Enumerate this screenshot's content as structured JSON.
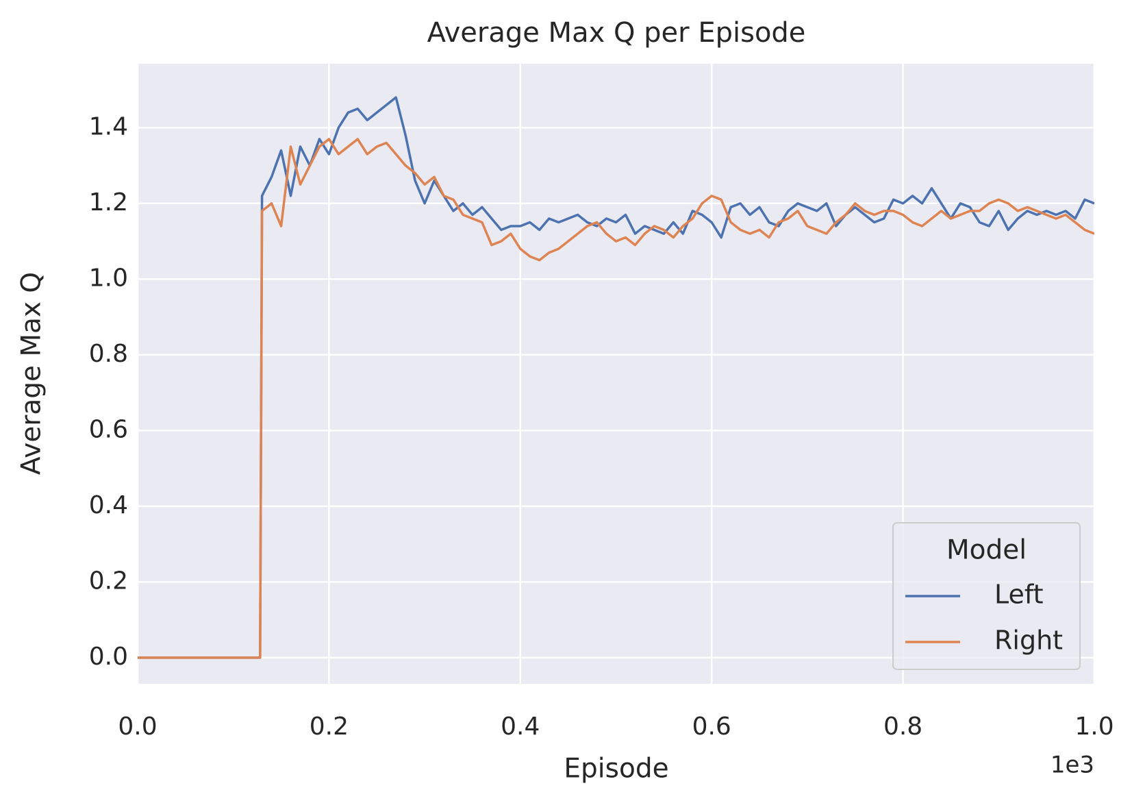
{
  "chart_data": {
    "type": "line",
    "title": "Average Max Q per Episode",
    "x_label": "Episode",
    "x_offset_label": "1e3",
    "y_label": "Average Max Q",
    "xlim": [
      0,
      1000
    ],
    "ylim": [
      -0.069,
      1.569
    ],
    "xticks": [
      {
        "value": 0,
        "label": "0.0"
      },
      {
        "value": 200,
        "label": "0.2"
      },
      {
        "value": 400,
        "label": "0.4"
      },
      {
        "value": 600,
        "label": "0.6"
      },
      {
        "value": 800,
        "label": "0.8"
      },
      {
        "value": 1000,
        "label": "1.0"
      }
    ],
    "yticks": [
      {
        "value": 0,
        "label": "0.0"
      },
      0.2,
      0.4,
      0.6,
      0.8,
      {
        "value": 1,
        "label": "1.0"
      },
      1.2,
      1.4
    ],
    "grid": true,
    "legend_title": "Model",
    "legend_position": "lower right",
    "x": [
      0,
      10,
      20,
      30,
      40,
      50,
      60,
      70,
      80,
      90,
      100,
      110,
      120,
      128,
      130,
      140,
      150,
      160,
      170,
      180,
      190,
      200,
      210,
      220,
      230,
      240,
      250,
      260,
      270,
      280,
      290,
      300,
      310,
      320,
      330,
      340,
      350,
      360,
      370,
      380,
      390,
      400,
      410,
      420,
      430,
      440,
      450,
      460,
      470,
      480,
      490,
      500,
      510,
      520,
      530,
      540,
      550,
      560,
      570,
      580,
      590,
      600,
      610,
      620,
      630,
      640,
      650,
      660,
      670,
      680,
      690,
      700,
      710,
      720,
      730,
      740,
      750,
      760,
      770,
      780,
      790,
      800,
      810,
      820,
      830,
      840,
      850,
      860,
      870,
      880,
      890,
      900,
      910,
      920,
      930,
      940,
      950,
      960,
      970,
      980,
      990,
      1000
    ],
    "series": [
      {
        "name": "Left",
        "color": "#4c72b0",
        "values": [
          0,
          0,
          0,
          0,
          0,
          0,
          0,
          0,
          0,
          0,
          0,
          0,
          0,
          0,
          1.22,
          1.27,
          1.34,
          1.22,
          1.35,
          1.3,
          1.37,
          1.33,
          1.4,
          1.44,
          1.45,
          1.42,
          1.44,
          1.46,
          1.48,
          1.38,
          1.26,
          1.2,
          1.26,
          1.22,
          1.18,
          1.2,
          1.17,
          1.19,
          1.16,
          1.13,
          1.14,
          1.14,
          1.15,
          1.13,
          1.16,
          1.15,
          1.16,
          1.17,
          1.15,
          1.14,
          1.16,
          1.15,
          1.17,
          1.12,
          1.14,
          1.13,
          1.12,
          1.15,
          1.12,
          1.18,
          1.17,
          1.15,
          1.11,
          1.19,
          1.2,
          1.17,
          1.19,
          1.15,
          1.14,
          1.18,
          1.2,
          1.19,
          1.18,
          1.2,
          1.14,
          1.17,
          1.19,
          1.17,
          1.15,
          1.16,
          1.21,
          1.2,
          1.22,
          1.2,
          1.24,
          1.2,
          1.16,
          1.2,
          1.19,
          1.15,
          1.14,
          1.18,
          1.13,
          1.16,
          1.18,
          1.17,
          1.18,
          1.17,
          1.18,
          1.16,
          1.21,
          1.2
        ]
      },
      {
        "name": "Right",
        "color": "#dd8452",
        "values": [
          0,
          0,
          0,
          0,
          0,
          0,
          0,
          0,
          0,
          0,
          0,
          0,
          0,
          0,
          1.18,
          1.2,
          1.14,
          1.35,
          1.25,
          1.3,
          1.35,
          1.37,
          1.33,
          1.35,
          1.37,
          1.33,
          1.35,
          1.36,
          1.33,
          1.3,
          1.28,
          1.25,
          1.27,
          1.22,
          1.21,
          1.17,
          1.16,
          1.15,
          1.09,
          1.1,
          1.12,
          1.08,
          1.06,
          1.05,
          1.07,
          1.08,
          1.1,
          1.12,
          1.14,
          1.15,
          1.12,
          1.1,
          1.11,
          1.09,
          1.12,
          1.14,
          1.13,
          1.11,
          1.14,
          1.16,
          1.2,
          1.22,
          1.21,
          1.15,
          1.13,
          1.12,
          1.13,
          1.11,
          1.15,
          1.16,
          1.18,
          1.14,
          1.13,
          1.12,
          1.15,
          1.17,
          1.2,
          1.18,
          1.17,
          1.18,
          1.18,
          1.17,
          1.15,
          1.14,
          1.16,
          1.18,
          1.16,
          1.17,
          1.18,
          1.18,
          1.2,
          1.21,
          1.2,
          1.18,
          1.19,
          1.18,
          1.17,
          1.16,
          1.17,
          1.15,
          1.13,
          1.12
        ]
      }
    ]
  }
}
